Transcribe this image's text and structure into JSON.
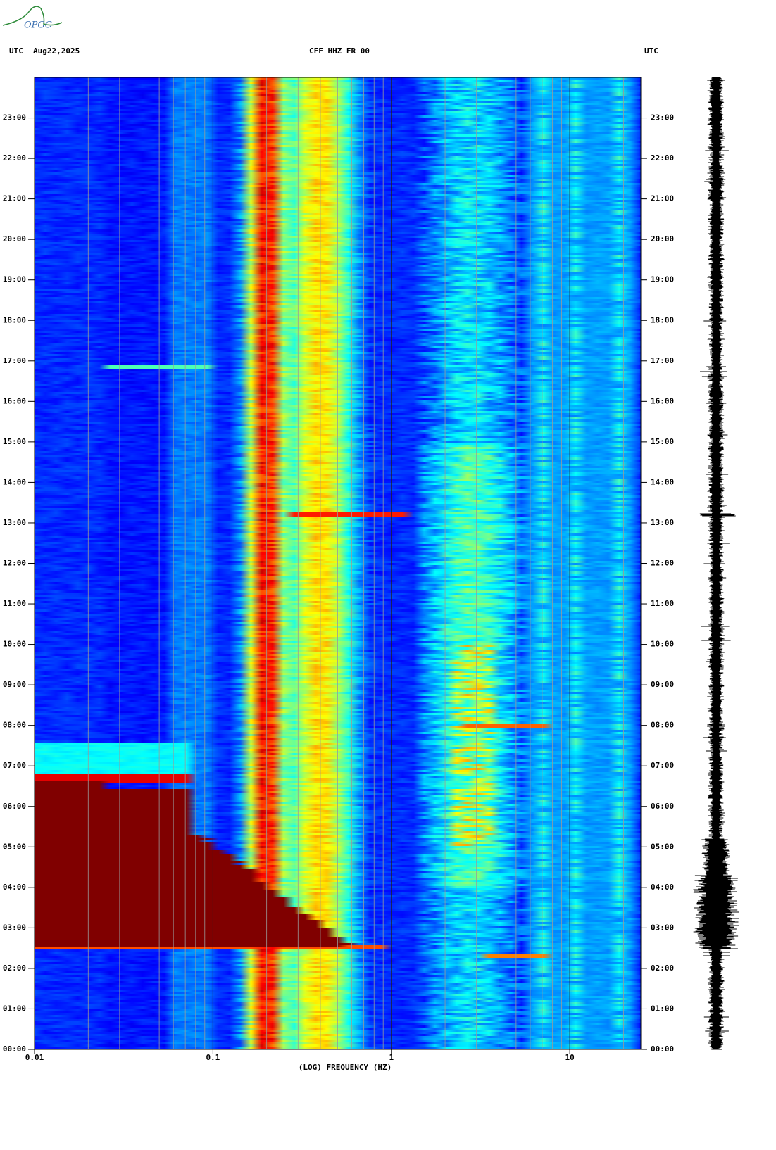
{
  "logo": "OPGC",
  "chart_data": {
    "type": "spectrogram",
    "title": "CFF HHZ FR 00",
    "date": "Aug22,2025",
    "time_zone": "UTC",
    "x_label": "(LOG) FREQUENCY (HZ)",
    "log_x": true,
    "colormap": "jet",
    "trace_color": "#000000",
    "xlim": [
      0.01,
      25
    ],
    "xticks": [
      0.01,
      0.1,
      1,
      10
    ],
    "x_minor_ticks": [
      0.02,
      0.03,
      0.04,
      0.05,
      0.06,
      0.07,
      0.08,
      0.09,
      0.2,
      0.3,
      0.4,
      0.5,
      0.6,
      0.7,
      0.8,
      0.9,
      2,
      3,
      4,
      5,
      6,
      7,
      8,
      9,
      20
    ],
    "ylim": [
      0,
      24
    ],
    "yticks": [
      {
        "value": 0,
        "label": "00:00"
      },
      {
        "value": 1,
        "label": "01:00"
      },
      {
        "value": 2,
        "label": "02:00"
      },
      {
        "value": 3,
        "label": "03:00"
      },
      {
        "value": 4,
        "label": "04:00"
      },
      {
        "value": 5,
        "label": "05:00"
      },
      {
        "value": 6,
        "label": "06:00"
      },
      {
        "value": 7,
        "label": "07:00"
      },
      {
        "value": 8,
        "label": "08:00"
      },
      {
        "value": 9,
        "label": "09:00"
      },
      {
        "value": 10,
        "label": "10:00"
      },
      {
        "value": 11,
        "label": "11:00"
      },
      {
        "value": 12,
        "label": "12:00"
      },
      {
        "value": 13,
        "label": "13:00"
      },
      {
        "value": 14,
        "label": "14:00"
      },
      {
        "value": 15,
        "label": "15:00"
      },
      {
        "value": 16,
        "label": "16:00"
      },
      {
        "value": 17,
        "label": "17:00"
      },
      {
        "value": 18,
        "label": "18:00"
      },
      {
        "value": 19,
        "label": "19:00"
      },
      {
        "value": 20,
        "label": "20:00"
      },
      {
        "value": 21,
        "label": "21:00"
      },
      {
        "value": 22,
        "label": "22:00"
      },
      {
        "value": 23,
        "label": "23:00"
      }
    ]
  }
}
